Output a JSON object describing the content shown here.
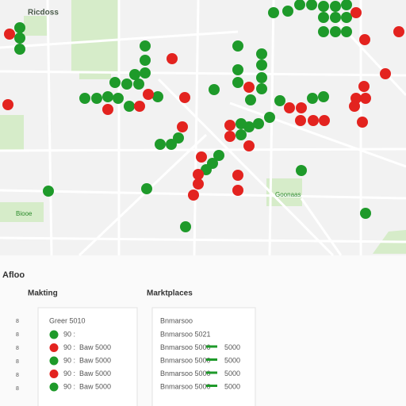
{
  "map": {
    "labels": [
      "Ricdoss",
      "Goonaas",
      "Biooe"
    ]
  },
  "panel": {
    "title": "Afloo",
    "left_numbers": [
      "8",
      "8",
      "8",
      "8",
      "8",
      "8"
    ],
    "sections": [
      {
        "title": "Makting",
        "header": "Greer 5010",
        "rows": [
          {
            "a": "90 :",
            "b": ""
          },
          {
            "a": "90 :",
            "b": "Baw 5000"
          },
          {
            "a": "90 :",
            "b": "Baw 5000"
          },
          {
            "a": "90 :",
            "b": "Baw 5000"
          },
          {
            "a": "90 :",
            "b": "Baw 5000"
          }
        ]
      },
      {
        "title": "Marktplaces",
        "header": "Bnmarsoo",
        "rows": [
          {
            "a": "Bnmarsoo 5021",
            "b": ""
          },
          {
            "a": "Bnmarsoo 5000",
            "b": "5000"
          },
          {
            "a": "Bnmarsoo 5000",
            "b": "5000"
          },
          {
            "a": "Bnmarsoo 5000",
            "b": "5000"
          },
          {
            "a": "Bnmarsoo 5000",
            "b": "5000"
          }
        ]
      }
    ]
  }
}
